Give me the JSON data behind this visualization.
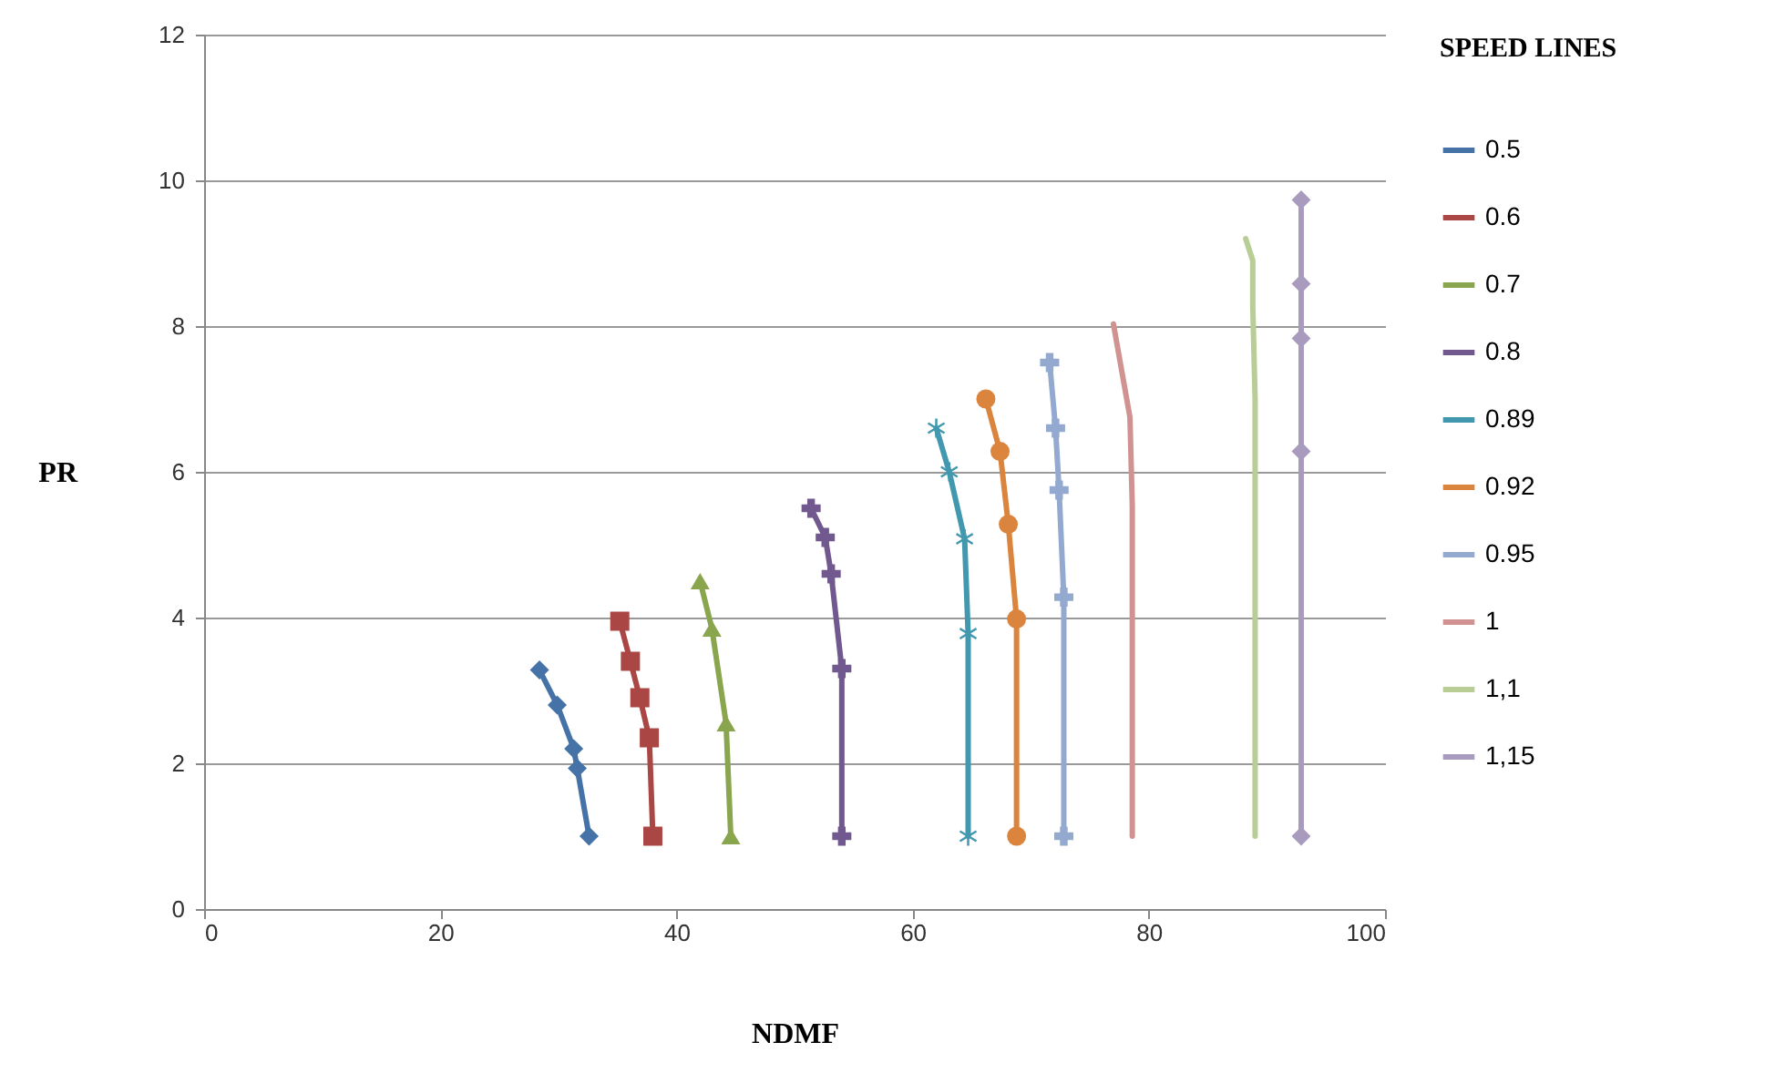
{
  "chart_data": {
    "type": "line",
    "xlabel": "NDMF",
    "ylabel": "PR",
    "legend_title": "SPEED LINES",
    "xlim": [
      0,
      100
    ],
    "ylim": [
      0,
      12
    ],
    "xticks": [
      0,
      20,
      40,
      60,
      80,
      100
    ],
    "yticks": [
      0,
      2,
      4,
      6,
      8,
      10,
      12
    ],
    "grid": "y",
    "legend": "right",
    "line_style": "solid",
    "series": [
      {
        "name": "0.5",
        "color": "#4572a7",
        "marker": "diamond",
        "x": [
          28.4,
          29.9,
          31.3,
          31.6,
          32.6
        ],
        "values": [
          3.28,
          2.8,
          2.2,
          1.93,
          1
        ]
      },
      {
        "name": "0.6",
        "color": "#aa4643",
        "marker": "square",
        "x": [
          35.2,
          36.1,
          36.9,
          37.7,
          38
        ],
        "values": [
          3.95,
          3.4,
          2.9,
          2.35,
          1
        ]
      },
      {
        "name": "0.7",
        "color": "#89a54e",
        "marker": "triangle",
        "x": [
          42,
          43,
          44.2,
          44.6
        ],
        "values": [
          4.5,
          3.85,
          2.55,
          1
        ]
      },
      {
        "name": "0.8",
        "color": "#71588f",
        "marker": "cross",
        "x": [
          51.4,
          52.6,
          53.1,
          54,
          54
        ],
        "values": [
          5.5,
          5.1,
          4.6,
          3.3,
          1
        ]
      },
      {
        "name": "0.89",
        "color": "#4198af",
        "marker": "star",
        "x": [
          62,
          63.1,
          64.4,
          64.7,
          64.7
        ],
        "values": [
          6.6,
          6,
          5.08,
          3.78,
          1
        ]
      },
      {
        "name": "0.92",
        "color": "#db843d",
        "marker": "circle",
        "x": [
          66.2,
          67.4,
          68.1,
          68.8,
          68.8
        ],
        "values": [
          7,
          6.28,
          5.28,
          3.98,
          1
        ]
      },
      {
        "name": "0.95",
        "color": "#93a9cf",
        "marker": "cross",
        "x": [
          71.6,
          72.1,
          72.4,
          72.8,
          72.8
        ],
        "values": [
          7.5,
          6.6,
          5.75,
          4.28,
          1
        ]
      },
      {
        "name": "1",
        "color": "#d19392",
        "marker": "none",
        "x": [
          77,
          78.4,
          78.6,
          78.6,
          78.6
        ],
        "values": [
          8.03,
          6.75,
          5.53,
          3.9,
          1
        ]
      },
      {
        "name": "1,1",
        "color": "#b9cd96",
        "marker": "none",
        "x": [
          88.2,
          88.8,
          88.8,
          89,
          89
        ],
        "values": [
          9.2,
          8.9,
          8.28,
          7,
          1
        ]
      },
      {
        "name": "1,15",
        "color": "#a99bbd",
        "marker": "diamond",
        "x": [
          92.9,
          92.9,
          92.9,
          92.9,
          92.9
        ],
        "values": [
          9.73,
          8.58,
          7.83,
          6.28,
          1
        ]
      }
    ]
  }
}
